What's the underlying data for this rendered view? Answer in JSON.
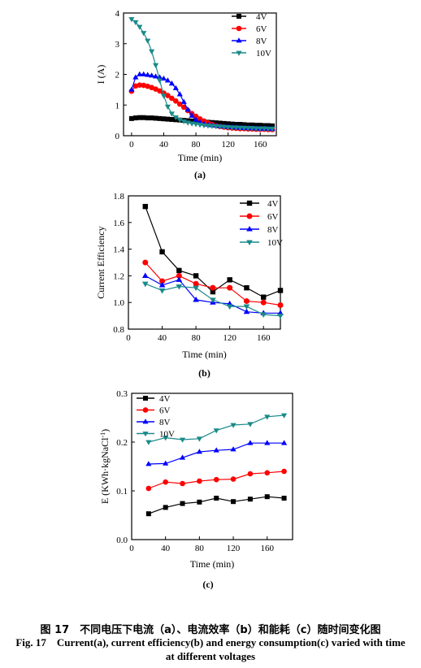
{
  "chart_data": [
    {
      "type": "line",
      "panel_label": "(a)",
      "xlabel": "Time (min)",
      "ylabel": "I (A)",
      "xlim": [
        -10,
        180
      ],
      "ylim": [
        0,
        4
      ],
      "xticks": [
        0,
        40,
        80,
        120,
        160
      ],
      "yticks": [
        0,
        1,
        2,
        3,
        4
      ],
      "grid": false,
      "legend": "top-right",
      "series": [
        {
          "name": "4V",
          "color": "#000000",
          "marker": "square",
          "x": [
            0,
            5,
            10,
            15,
            20,
            25,
            30,
            35,
            40,
            45,
            50,
            55,
            60,
            65,
            70,
            75,
            80,
            85,
            90,
            95,
            100,
            105,
            110,
            115,
            120,
            125,
            130,
            135,
            140,
            145,
            150,
            155,
            160,
            165,
            170,
            175
          ],
          "y": [
            0.56,
            0.58,
            0.59,
            0.59,
            0.58,
            0.58,
            0.57,
            0.56,
            0.55,
            0.54,
            0.53,
            0.52,
            0.51,
            0.5,
            0.49,
            0.48,
            0.47,
            0.46,
            0.45,
            0.44,
            0.43,
            0.42,
            0.41,
            0.4,
            0.39,
            0.38,
            0.37,
            0.37,
            0.36,
            0.35,
            0.35,
            0.34,
            0.34,
            0.33,
            0.33,
            0.32
          ]
        },
        {
          "name": "6V",
          "color": "#ff0000",
          "marker": "circle",
          "x": [
            0,
            5,
            10,
            15,
            20,
            25,
            30,
            35,
            40,
            45,
            50,
            55,
            60,
            65,
            70,
            75,
            80,
            85,
            90,
            95,
            100,
            105,
            110,
            115,
            120,
            125,
            130,
            135,
            140,
            145,
            150,
            155,
            160,
            165,
            170,
            175
          ],
          "y": [
            1.45,
            1.62,
            1.65,
            1.64,
            1.61,
            1.57,
            1.52,
            1.46,
            1.39,
            1.31,
            1.22,
            1.13,
            1.03,
            0.93,
            0.82,
            0.72,
            0.63,
            0.55,
            0.48,
            0.42,
            0.37,
            0.33,
            0.3,
            0.28,
            0.26,
            0.25,
            0.24,
            0.23,
            0.23,
            0.22,
            0.22,
            0.21,
            0.21,
            0.21,
            0.2,
            0.2
          ]
        },
        {
          "name": "8V",
          "color": "#0000ff",
          "marker": "triangle-up",
          "x": [
            0,
            5,
            10,
            15,
            20,
            25,
            30,
            35,
            40,
            45,
            50,
            55,
            60,
            65,
            70,
            75,
            80,
            85,
            90,
            95,
            100,
            105,
            110,
            115,
            120,
            125,
            130,
            135,
            140,
            145,
            150,
            155,
            160,
            165,
            170,
            175
          ],
          "y": [
            1.5,
            1.9,
            2.0,
            2.0,
            1.98,
            1.96,
            1.93,
            1.9,
            1.86,
            1.8,
            1.7,
            1.55,
            1.35,
            1.1,
            0.85,
            0.65,
            0.52,
            0.44,
            0.39,
            0.36,
            0.34,
            0.33,
            0.31,
            0.3,
            0.29,
            0.28,
            0.27,
            0.26,
            0.25,
            0.25,
            0.24,
            0.24,
            0.23,
            0.23,
            0.23,
            0.22
          ]
        },
        {
          "name": "10V",
          "color": "#1a8a8a",
          "marker": "triangle-down",
          "x": [
            0,
            5,
            10,
            15,
            20,
            25,
            30,
            35,
            40,
            45,
            50,
            55,
            60,
            65,
            70,
            75,
            80,
            85,
            90,
            95,
            100,
            105,
            110,
            115,
            120,
            125,
            130,
            135,
            140,
            145,
            150,
            155,
            160,
            165,
            170,
            175
          ],
          "y": [
            3.8,
            3.7,
            3.55,
            3.35,
            3.1,
            2.75,
            2.3,
            1.8,
            1.3,
            0.95,
            0.72,
            0.6,
            0.52,
            0.47,
            0.43,
            0.4,
            0.38,
            0.36,
            0.34,
            0.33,
            0.32,
            0.31,
            0.3,
            0.29,
            0.28,
            0.27,
            0.27,
            0.26,
            0.26,
            0.25,
            0.25,
            0.24,
            0.24,
            0.24,
            0.23,
            0.23
          ]
        }
      ]
    },
    {
      "type": "line",
      "panel_label": "(b)",
      "xlabel": "Time (min)",
      "ylabel": "Current Efficiency",
      "xlim": [
        0,
        180
      ],
      "ylim": [
        0.8,
        1.8
      ],
      "xticks": [
        0,
        40,
        80,
        120,
        160
      ],
      "yticks": [
        0.8,
        1.0,
        1.2,
        1.4,
        1.6,
        1.8
      ],
      "ytick_labels": [
        "0.8",
        "1.0",
        "1.2",
        "1.4",
        "1.6",
        "1.8"
      ],
      "grid": false,
      "legend": "top-right",
      "series": [
        {
          "name": "4V",
          "color": "#000000",
          "marker": "square",
          "x": [
            20,
            40,
            60,
            80,
            100,
            120,
            140,
            160,
            180
          ],
          "y": [
            1.72,
            1.38,
            1.24,
            1.2,
            1.08,
            1.17,
            1.11,
            1.04,
            1.09
          ]
        },
        {
          "name": "6V",
          "color": "#ff0000",
          "marker": "circle",
          "x": [
            20,
            40,
            60,
            80,
            100,
            120,
            140,
            160,
            180
          ],
          "y": [
            1.3,
            1.16,
            1.2,
            1.14,
            1.11,
            1.11,
            1.01,
            1.0,
            0.98
          ]
        },
        {
          "name": "8V",
          "color": "#0000ff",
          "marker": "triangle-up",
          "x": [
            20,
            40,
            60,
            80,
            100,
            120,
            140,
            160,
            180
          ],
          "y": [
            1.2,
            1.13,
            1.17,
            1.02,
            1.0,
            0.99,
            0.93,
            0.92,
            0.92
          ]
        },
        {
          "name": "10V",
          "color": "#1a8a8a",
          "marker": "triangle-down",
          "x": [
            20,
            40,
            60,
            80,
            100,
            120,
            140,
            160,
            180
          ],
          "y": [
            1.14,
            1.09,
            1.12,
            1.11,
            1.02,
            0.97,
            0.97,
            0.91,
            0.9
          ]
        }
      ]
    },
    {
      "type": "line",
      "panel_label": "(c)",
      "xlabel": "Time (min)",
      "ylabel": "E (KWh·kgNaCl",
      "ylabel_sup": "-1",
      "ylabel_close": ")",
      "xlim": [
        0,
        190
      ],
      "ylim": [
        0,
        0.3
      ],
      "xticks": [
        0,
        40,
        80,
        120,
        160
      ],
      "yticks": [
        0,
        0.1,
        0.2,
        0.3
      ],
      "ytick_labels": [
        "0.0",
        "0.1",
        "0.2",
        "0.3"
      ],
      "grid": false,
      "legend": "top-left",
      "series": [
        {
          "name": "4V",
          "color": "#000000",
          "marker": "square",
          "x": [
            20,
            40,
            60,
            80,
            100,
            120,
            140,
            160,
            180
          ],
          "y": [
            0.053,
            0.066,
            0.074,
            0.077,
            0.085,
            0.078,
            0.083,
            0.088,
            0.085
          ]
        },
        {
          "name": "6V",
          "color": "#ff0000",
          "marker": "circle",
          "x": [
            20,
            40,
            60,
            80,
            100,
            120,
            140,
            160,
            180
          ],
          "y": [
            0.105,
            0.118,
            0.115,
            0.12,
            0.123,
            0.124,
            0.135,
            0.137,
            0.14
          ]
        },
        {
          "name": "8V",
          "color": "#0000ff",
          "marker": "triangle-up",
          "x": [
            20,
            40,
            60,
            80,
            100,
            120,
            140,
            160,
            180
          ],
          "y": [
            0.155,
            0.156,
            0.168,
            0.18,
            0.183,
            0.185,
            0.198,
            0.198,
            0.198
          ]
        },
        {
          "name": "10V",
          "color": "#1a8a8a",
          "marker": "triangle-down",
          "x": [
            20,
            40,
            60,
            80,
            100,
            120,
            140,
            160,
            180
          ],
          "y": [
            0.2,
            0.209,
            0.205,
            0.207,
            0.224,
            0.235,
            0.237,
            0.252,
            0.255
          ]
        }
      ]
    }
  ],
  "caption": {
    "zh": "图 17　不同电压下电流（a）、电流效率（b）和能耗（c）随时间变化图",
    "en_line1": "Fig. 17　Current(a), current efficiency(b) and energy consumption(c) varied with time",
    "en_line2": "at different voltages"
  }
}
